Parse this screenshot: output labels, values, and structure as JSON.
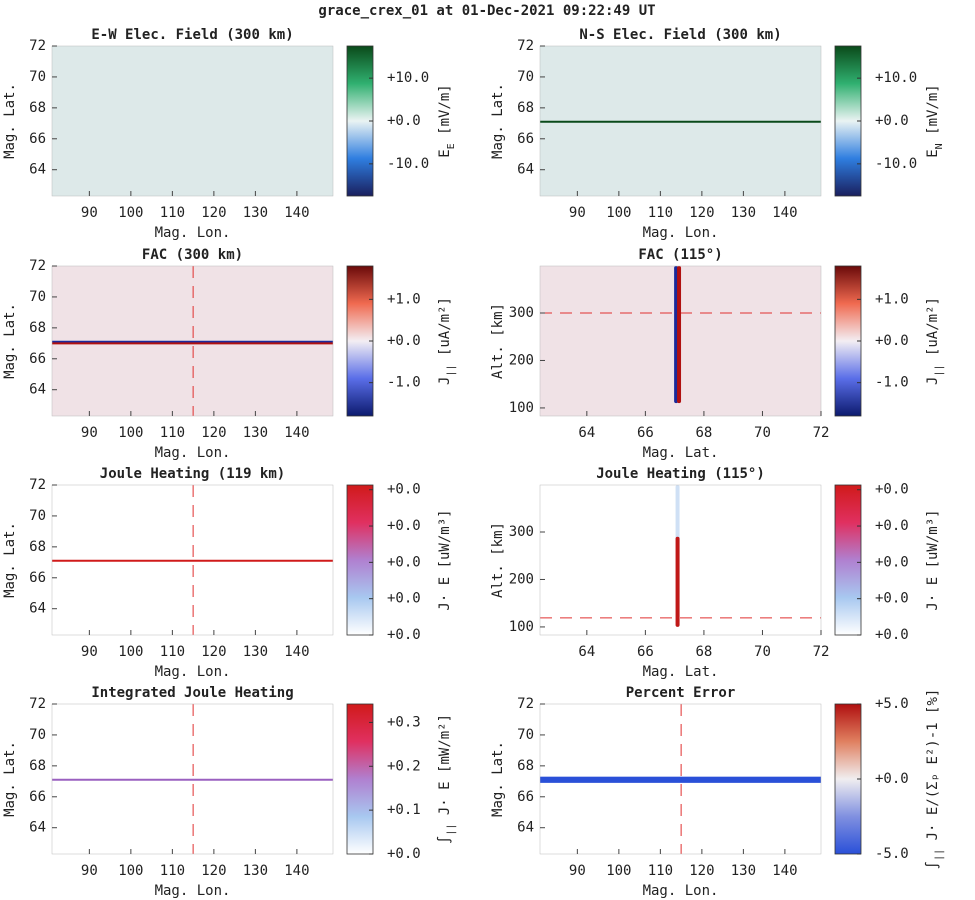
{
  "title": "grace_crex_01 at 01-Dec-2021 09:22:49 UT",
  "chart_data": [
    {
      "type": "heatmap",
      "title": "E-W Elec. Field (300 km)",
      "xlabel": "Mag. Lon.",
      "ylabel": "Mag. Lat.",
      "xlim": [
        81,
        148.7
      ],
      "xticks": [
        90,
        100,
        110,
        120,
        130,
        140
      ],
      "ylim": [
        62.3,
        72
      ],
      "yticks": [
        64,
        66,
        68,
        70,
        72
      ],
      "background": "#dde9e9",
      "features": [],
      "colorbar": {
        "label": {
          "main": "E",
          "sub": "E",
          "rest": " [mV/m]"
        },
        "clim": [
          -17.5,
          17.5
        ],
        "ticks": [
          {
            "value": -10,
            "label": "-10.0"
          },
          {
            "value": 0,
            "label": "+0.0"
          },
          {
            "value": 10,
            "label": "+10.0"
          }
        ],
        "colors": [
          "#1a1f5e",
          "#2f7ee0",
          "#eaf3f3",
          "#30b070",
          "#0a4a1a"
        ]
      }
    },
    {
      "type": "heatmap",
      "title": "N-S Elec. Field (300 km)",
      "xlabel": "Mag. Lon.",
      "ylabel": "Mag. Lat.",
      "xlim": [
        81,
        148.7
      ],
      "xticks": [
        90,
        100,
        110,
        120,
        130,
        140
      ],
      "ylim": [
        62.3,
        72
      ],
      "yticks": [
        64,
        66,
        68,
        70,
        72
      ],
      "background": "#dde9e9",
      "features": [
        {
          "kind": "hline",
          "value": 67.1,
          "color": "#0a4a1a"
        }
      ],
      "colorbar": {
        "label": {
          "main": "E",
          "sub": "N",
          "rest": " [mV/m]"
        },
        "clim": [
          -17.5,
          17.5
        ],
        "ticks": [
          {
            "value": -10,
            "label": "-10.0"
          },
          {
            "value": 0,
            "label": "+0.0"
          },
          {
            "value": 10,
            "label": "+10.0"
          }
        ],
        "colors": [
          "#1a1f5e",
          "#2f7ee0",
          "#eaf3f3",
          "#30b070",
          "#0a4a1a"
        ]
      }
    },
    {
      "type": "heatmap",
      "title": "FAC (300 km)",
      "xlabel": "Mag. Lon.",
      "ylabel": "Mag. Lat.",
      "xlim": [
        81,
        148.7
      ],
      "xticks": [
        90,
        100,
        110,
        120,
        130,
        140
      ],
      "ylim": [
        62.3,
        72
      ],
      "yticks": [
        64,
        66,
        68,
        70,
        72
      ],
      "background": "#f0e2e6",
      "features": [
        {
          "kind": "hline",
          "value": 67.1,
          "color": "#1a2a9a"
        },
        {
          "kind": "hline",
          "value": 67.0,
          "color": "#b01010"
        },
        {
          "kind": "dashed-v",
          "value": 115,
          "color": "#e03030"
        }
      ],
      "colorbar": {
        "label": {
          "main": "J",
          "sub": "||",
          "rest": " [uA/m²]"
        },
        "clim": [
          -1.8,
          1.8
        ],
        "ticks": [
          {
            "value": -1,
            "label": "-1.0"
          },
          {
            "value": 0,
            "label": "+0.0"
          },
          {
            "value": 1,
            "label": "+1.0"
          }
        ],
        "colors": [
          "#0c1a6e",
          "#5a6ee8",
          "#f3eef3",
          "#f06a50",
          "#6a0a0a"
        ]
      }
    },
    {
      "type": "heatmap",
      "title": "FAC (115°)",
      "xlabel": "Mag. Lat.",
      "ylabel": "Alt. [km]",
      "xlim": [
        62.4,
        72
      ],
      "xticks": [
        64,
        66,
        68,
        70,
        72
      ],
      "ylim": [
        83,
        399
      ],
      "yticks": [
        100,
        200,
        300
      ],
      "background": "#f0e2e6",
      "features": [
        {
          "kind": "dashed-h",
          "value": 300,
          "color": "#e03030"
        },
        {
          "kind": "vspike",
          "value": 67.05,
          "range": [
            110,
            399
          ],
          "color": "#1a2a9a"
        },
        {
          "kind": "vspike",
          "value": 67.15,
          "range": [
            110,
            399
          ],
          "color": "#b01010"
        }
      ],
      "colorbar": {
        "label": {
          "main": "J",
          "sub": "||",
          "rest": " [uA/m²]"
        },
        "clim": [
          -1.8,
          1.8
        ],
        "ticks": [
          {
            "value": -1,
            "label": "-1.0"
          },
          {
            "value": 0,
            "label": "+0.0"
          },
          {
            "value": 1,
            "label": "+1.0"
          }
        ],
        "colors": [
          "#0c1a6e",
          "#5a6ee8",
          "#f3eef3",
          "#f06a50",
          "#6a0a0a"
        ]
      }
    },
    {
      "type": "heatmap",
      "title": "Joule Heating (119 km)",
      "xlabel": "Mag. Lon.",
      "ylabel": "Mag. Lat.",
      "xlim": [
        81,
        148.7
      ],
      "xticks": [
        90,
        100,
        110,
        120,
        130,
        140
      ],
      "ylim": [
        62.3,
        72
      ],
      "yticks": [
        64,
        66,
        68,
        70,
        72
      ],
      "background": "#ffffff",
      "features": [
        {
          "kind": "hline",
          "value": 67.1,
          "color": "#d01a1a"
        },
        {
          "kind": "dashed-v",
          "value": 115,
          "color": "#e03030"
        }
      ],
      "colorbar": {
        "label": {
          "main": "J· E [uW/m³]",
          "sub": "",
          "rest": ""
        },
        "clim": [
          0,
          0.0413
        ],
        "ticks": [
          {
            "value": 0,
            "label": "+0.0"
          },
          {
            "value": 0.01,
            "label": "+0.0"
          },
          {
            "value": 0.02,
            "label": "+0.0"
          },
          {
            "value": 0.03,
            "label": "+0.0"
          },
          {
            "value": 0.04,
            "label": "+0.0"
          }
        ],
        "colors": [
          "#ffffff",
          "#a8c8f0",
          "#b080d0",
          "#e03060",
          "#d01a1a"
        ]
      }
    },
    {
      "type": "heatmap",
      "title": "Joule Heating (115°)",
      "xlabel": "Mag. Lat.",
      "ylabel": "Alt. [km]",
      "xlim": [
        62.4,
        72
      ],
      "xticks": [
        64,
        66,
        68,
        70,
        72
      ],
      "ylim": [
        83,
        399
      ],
      "yticks": [
        100,
        200,
        300
      ],
      "background": "#ffffff",
      "features": [
        {
          "kind": "vspike",
          "value": 67.1,
          "range": [
            100,
            399
          ],
          "color": "#cfe0f5"
        },
        {
          "kind": "vspike",
          "value": 67.1,
          "range": [
            100,
            290
          ],
          "color": "#c01818"
        },
        {
          "kind": "dashed-h",
          "value": 119,
          "color": "#e03030"
        }
      ],
      "colorbar": {
        "label": {
          "main": "J· E [uW/m³]",
          "sub": "",
          "rest": ""
        },
        "clim": [
          0,
          0.0413
        ],
        "ticks": [
          {
            "value": 0,
            "label": "+0.0"
          },
          {
            "value": 0.01,
            "label": "+0.0"
          },
          {
            "value": 0.02,
            "label": "+0.0"
          },
          {
            "value": 0.03,
            "label": "+0.0"
          },
          {
            "value": 0.04,
            "label": "+0.0"
          }
        ],
        "colors": [
          "#ffffff",
          "#a8c8f0",
          "#b080d0",
          "#e03060",
          "#d01a1a"
        ]
      }
    },
    {
      "type": "heatmap",
      "title": "Integrated Joule Heating",
      "xlabel": "Mag. Lon.",
      "ylabel": "Mag. Lat.",
      "xlim": [
        81,
        148.7
      ],
      "xticks": [
        90,
        100,
        110,
        120,
        130,
        140
      ],
      "ylim": [
        62.3,
        72
      ],
      "yticks": [
        64,
        66,
        68,
        70,
        72
      ],
      "background": "#ffffff",
      "features": [
        {
          "kind": "hline",
          "value": 67.1,
          "color": "#9a60c0"
        },
        {
          "kind": "dashed-v",
          "value": 115,
          "color": "#e03030"
        }
      ],
      "colorbar": {
        "label": {
          "main": "∫",
          "sub": "||",
          "rest": " J· E [mW/m²]"
        },
        "clim": [
          0,
          0.342
        ],
        "ticks": [
          {
            "value": 0,
            "label": "+0.0"
          },
          {
            "value": 0.1,
            "label": "+0.1"
          },
          {
            "value": 0.2,
            "label": "+0.2"
          },
          {
            "value": 0.3,
            "label": "+0.3"
          }
        ],
        "colors": [
          "#ffffff",
          "#a8c8f0",
          "#b080d0",
          "#e03060",
          "#d01a1a"
        ]
      }
    },
    {
      "type": "heatmap",
      "title": "Percent Error",
      "xlabel": "Mag. Lon.",
      "ylabel": "Mag. Lat.",
      "xlim": [
        81,
        148.7
      ],
      "xticks": [
        90,
        100,
        110,
        120,
        130,
        140
      ],
      "ylim": [
        62.3,
        72
      ],
      "yticks": [
        64,
        66,
        68,
        70,
        72
      ],
      "background": "#ffffff",
      "features": [
        {
          "kind": "band",
          "value": [
            66.9,
            67.3
          ],
          "color": "#2a50d8"
        },
        {
          "kind": "dashed-v",
          "value": 115,
          "color": "#e03030"
        }
      ],
      "colorbar": {
        "label": {
          "main": "∫",
          "sub": "||",
          "rest": " J· E/(Σₚ E²)-1 [%]"
        },
        "clim": [
          -5,
          5
        ],
        "ticks": [
          {
            "value": -5,
            "label": "-5.0"
          },
          {
            "value": 0,
            "label": "+0.0"
          },
          {
            "value": 5,
            "label": "+5.0"
          }
        ],
        "colors": [
          "#2a50d8",
          "#8090e0",
          "#f0eef0",
          "#e08060",
          "#b01010"
        ]
      }
    }
  ]
}
